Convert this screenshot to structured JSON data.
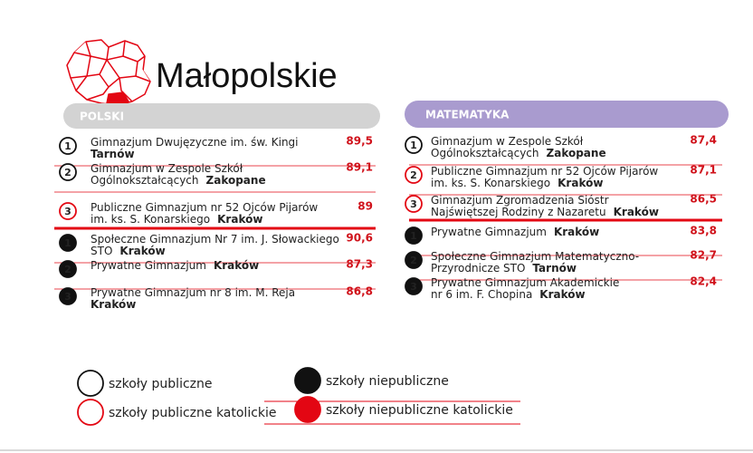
{
  "title": "Małopolskie",
  "panels": [
    {
      "subject": "POLSKI",
      "color": "#d3d3d3",
      "lists": [
        {
          "filled": false,
          "items": [
            {
              "rank": "1",
              "color": "#111111",
              "lines": [
                {
                  "text": "Gimnazjum Dwujęzyczne im. św. Kingi"
                },
                {
                  "city": "Tarnów"
                }
              ],
              "score": "89,5"
            },
            {
              "rank": "2",
              "color": "#111111",
              "lines": [
                {
                  "text": "Gimnazjum w Zespole Szkół"
                },
                {
                  "text": "Ogólnokształcących",
                  "city": "Zakopane"
                }
              ],
              "score": "89,1"
            },
            {
              "rank": "3",
              "color": "#e30613",
              "lines": [
                {
                  "text": "Publiczne Gimnazjum nr 52 Ojców Pijarów"
                },
                {
                  "text": "im. ks. S. Konarskiego",
                  "city": "Kraków"
                }
              ],
              "score": "89"
            }
          ]
        },
        {
          "filled": true,
          "items": [
            {
              "rank": "1",
              "color": "#111111",
              "lines": [
                {
                  "text": "Społeczne Gimnazjum Nr 7 im. J. Słowackiego"
                },
                {
                  "text": "STO",
                  "city": "Kraków"
                }
              ],
              "score": "90,6"
            },
            {
              "rank": "2",
              "color": "#111111",
              "lines": [
                {
                  "text": "Prywatne Gimnazjum",
                  "city": "Kraków"
                }
              ],
              "score": "87,3"
            },
            {
              "rank": "3",
              "color": "#111111",
              "lines": [
                {
                  "text": "Prywatne Gimnazjum nr 8 im. M. Reja"
                },
                {
                  "city": "Kraków"
                }
              ],
              "score": "86,8"
            }
          ]
        }
      ]
    },
    {
      "subject": "MATEMATYKA",
      "color": "#a99bcf",
      "lists": [
        {
          "filled": false,
          "items": [
            {
              "rank": "1",
              "color": "#111111",
              "lines": [
                {
                  "text": "Gimnazjum w Zespole Szkół"
                },
                {
                  "text": "Ogólnokształcących",
                  "city": "Zakopane"
                }
              ],
              "score": "87,4"
            },
            {
              "rank": "2",
              "color": "#e30613",
              "lines": [
                {
                  "text": "Publiczne Gimnazjum nr 52 Ojców Pijarów"
                },
                {
                  "text": "im. ks. S. Konarskiego",
                  "city": "Kraków"
                }
              ],
              "score": "87,1"
            },
            {
              "rank": "3",
              "color": "#e30613",
              "lines": [
                {
                  "text": "Gimnazjum Zgromadzenia Sióstr"
                },
                {
                  "text": "Najświętszej Rodziny z Nazaretu",
                  "city": "Kraków"
                }
              ],
              "score": "86,5"
            }
          ]
        },
        {
          "filled": true,
          "items": [
            {
              "rank": "1",
              "color": "#111111",
              "lines": [
                {
                  "text": "Prywatne Gimnazjum",
                  "city": "Kraków"
                }
              ],
              "score": "83,8"
            },
            {
              "rank": "2",
              "color": "#111111",
              "lines": [
                {
                  "text": "Społeczne Gimnazjum Matematyczno-"
                },
                {
                  "text": "Przyrodnicze STO",
                  "city": "Tarnów"
                }
              ],
              "score": "82,7"
            },
            {
              "rank": "3",
              "color": "#111111",
              "lines": [
                {
                  "text": "Prywatne Gimnazjum Akademickie"
                },
                {
                  "text": "nr 6 im. F. Chopina",
                  "city": "Kraków"
                }
              ],
              "score": "82,4"
            }
          ]
        }
      ]
    }
  ],
  "legend": [
    {
      "label": "szkoły publiczne",
      "filled": false,
      "color": "#111111"
    },
    {
      "label": "szkoły publiczne katolickie",
      "filled": false,
      "color": "#e30613"
    },
    {
      "label": "szkoły niepubliczne",
      "filled": true,
      "color": "#111111"
    },
    {
      "label": "szkoły niepubliczne katolickie",
      "filled": true,
      "color": "#e30613"
    }
  ]
}
